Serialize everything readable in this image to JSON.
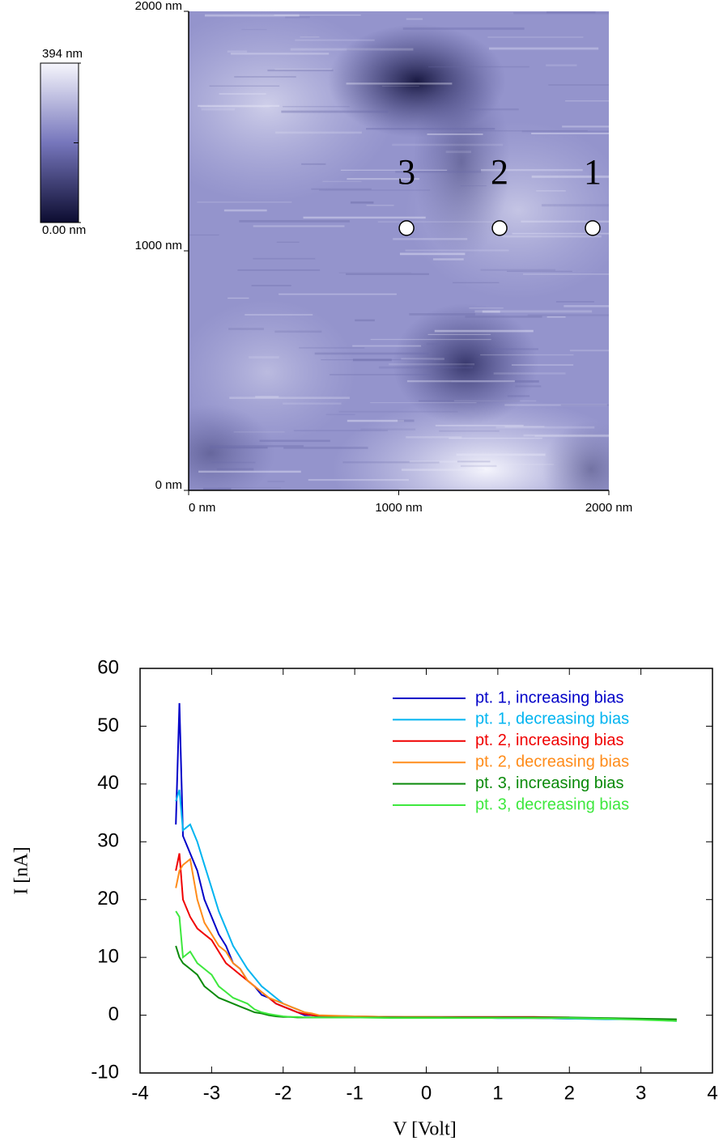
{
  "chart_data": [
    {
      "type": "image",
      "xlim": [
        0,
        2000
      ],
      "ylim": [
        0,
        2000
      ],
      "xticks": [
        {
          "value": 0,
          "label": "0 nm"
        },
        {
          "value": 1000,
          "label": "1000 nm"
        },
        {
          "value": 2000,
          "label": "2000 nm"
        }
      ],
      "yticks": [
        {
          "value": 0,
          "label": "0 nm"
        },
        {
          "value": 1000,
          "label": "1000 nm"
        },
        {
          "value": 2000,
          "label": "2000 nm"
        }
      ],
      "colorbar": {
        "lim": [
          0,
          394
        ],
        "ticks": [
          {
            "value": 394,
            "label": "394 nm"
          },
          {
            "value": 0,
            "label": "0.00 nm"
          }
        ],
        "colors": [
          "#0c0c30",
          "#7676bc",
          "#f6f6fc"
        ]
      },
      "points": {
        "x": [
          1923,
          1480,
          1037
        ],
        "y": [
          1095,
          1095,
          1095
        ],
        "labels": [
          "1",
          "2",
          "3"
        ],
        "color": "#ffffff"
      }
    },
    {
      "type": "line",
      "xlabel": "V [Volt]",
      "ylabel": "I [nA]",
      "x": [
        -3.5,
        -3.45,
        -3.4,
        -3.3,
        -3.2,
        -3.1,
        -3.0,
        -2.9,
        -2.8,
        -2.7,
        -2.6,
        -2.5,
        -2.4,
        -2.3,
        -2.2,
        -2.1,
        -2.0,
        -1.9,
        -1.8,
        -1.7,
        -1.6,
        -1.5,
        -1.0,
        -0.5,
        0,
        0.5,
        1,
        1.5,
        2,
        2.5,
        3,
        3.5
      ],
      "xlim": [
        -4,
        4
      ],
      "ylim": [
        -10,
        60
      ],
      "xticks": [
        -4,
        -3,
        -2,
        -1,
        0,
        1,
        2,
        3,
        4
      ],
      "yticks": [
        -10,
        0,
        10,
        20,
        30,
        40,
        50,
        60
      ],
      "legend": "upper right",
      "series": [
        {
          "name": "pt. 1, increasing bias",
          "color": "#0000c8",
          "values": [
            33,
            54,
            31,
            28,
            25,
            20,
            17,
            14,
            12,
            9,
            8,
            6,
            5,
            3.5,
            3,
            2,
            1.5,
            1,
            0.5,
            0,
            0,
            -0.2,
            -0.3,
            -0.3,
            -0.4,
            -0.4,
            -0.5,
            -0.5,
            -0.6,
            -0.6,
            -0.7,
            -0.8
          ]
        },
        {
          "name": "pt. 1, decreasing bias",
          "color": "#00b4f0",
          "values": [
            37,
            39,
            32,
            33,
            30,
            26,
            22,
            18,
            15,
            12,
            10,
            8,
            6.5,
            5,
            4,
            3,
            2,
            1.5,
            1,
            0.5,
            0,
            -0.2,
            -0.3,
            -0.3,
            -0.4,
            -0.4,
            -0.5,
            -0.5,
            -0.6,
            -0.7,
            -0.7,
            -1.0
          ]
        },
        {
          "name": "pt. 2, increasing bias",
          "color": "#f00000",
          "values": [
            25,
            28,
            20,
            17,
            15,
            14,
            13,
            11,
            9,
            8,
            7,
            6,
            5,
            4,
            3,
            2,
            1.5,
            1,
            0.5,
            0.2,
            0,
            -0.1,
            -0.2,
            -0.3,
            -0.3,
            -0.3,
            -0.3,
            -0.3,
            -0.4,
            null,
            null,
            null
          ]
        },
        {
          "name": "pt. 2, decreasing bias",
          "color": "#ff8c1a",
          "values": [
            22,
            25,
            26,
            27,
            20,
            16,
            14,
            12,
            11,
            9,
            8,
            6,
            5,
            4,
            3,
            2.5,
            2,
            1.5,
            1,
            0.5,
            0.3,
            0,
            -0.2,
            -0.3,
            -0.3,
            -0.4,
            -0.4,
            -0.5,
            -0.5,
            -0.6,
            -0.7,
            -0.8
          ]
        },
        {
          "name": "pt. 3, increasing bias",
          "color": "#0a8a0a",
          "values": [
            12,
            10,
            9,
            8,
            7,
            5,
            4,
            3,
            2.5,
            2,
            1.5,
            1,
            0.5,
            0.3,
            0,
            -0.2,
            -0.3,
            -0.3,
            -0.4,
            -0.4,
            -0.4,
            -0.4,
            -0.4,
            -0.4,
            -0.4,
            -0.4,
            -0.4,
            -0.4,
            -0.4,
            -0.5,
            -0.6,
            -0.7
          ]
        },
        {
          "name": "pt. 3, decreasing bias",
          "color": "#3ee83e",
          "values": [
            18,
            17,
            10,
            11,
            9,
            8,
            7,
            5,
            4,
            3,
            2.5,
            2,
            1,
            0.5,
            0.2,
            0,
            -0.2,
            -0.3,
            -0.3,
            -0.4,
            -0.4,
            -0.4,
            -0.4,
            -0.5,
            -0.5,
            -0.5,
            -0.5,
            -0.5,
            -0.5,
            -0.6,
            -0.8,
            -1.0
          ]
        }
      ]
    }
  ]
}
